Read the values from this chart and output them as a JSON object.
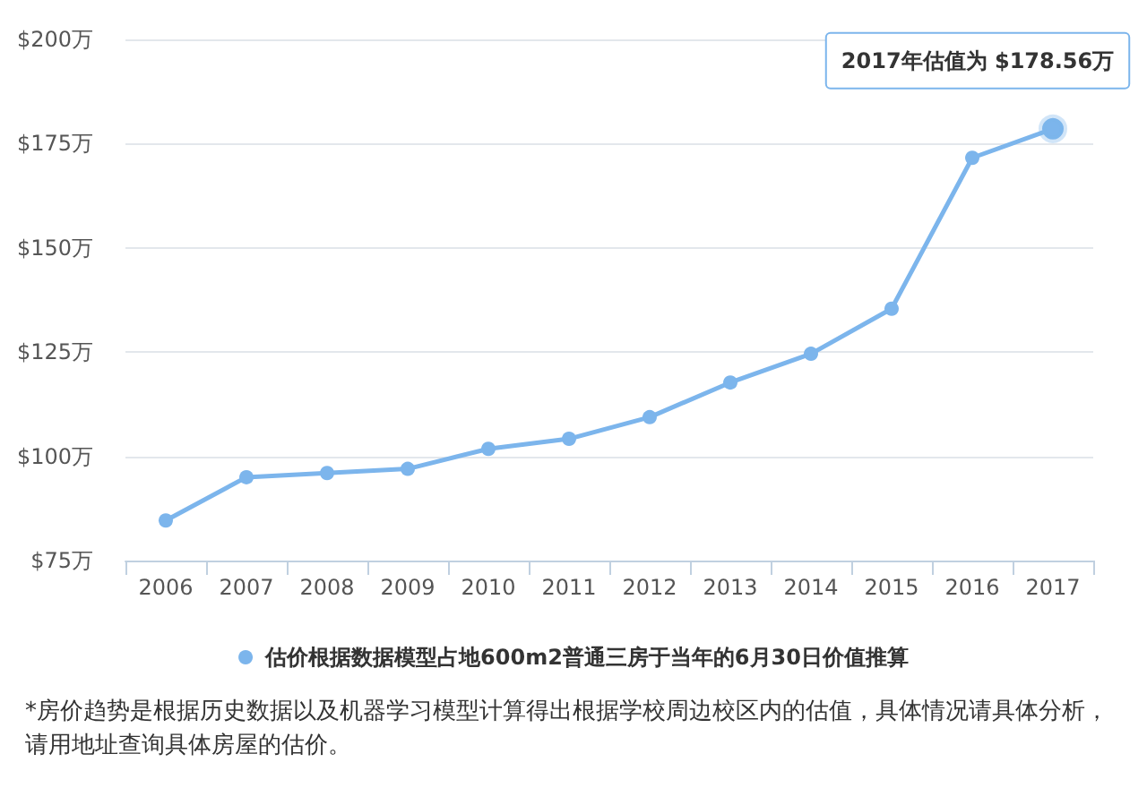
{
  "chart_data": {
    "type": "line",
    "categories": [
      "2006",
      "2007",
      "2008",
      "2009",
      "2010",
      "2011",
      "2012",
      "2013",
      "2014",
      "2015",
      "2016",
      "2017"
    ],
    "series": [
      {
        "name": "估价根据数据模型占地600m2普通三房于当年的6月30日价值推算",
        "color": "#7cb5ec",
        "values": [
          84.6,
          95,
          96,
          97,
          101.8,
          104.2,
          109.4,
          117.7,
          124.6,
          135.4,
          171.6,
          178.56
        ]
      }
    ],
    "ylim": [
      75,
      200
    ],
    "yticks": [
      {
        "value": 75,
        "label": "$75万"
      },
      {
        "value": 100,
        "label": "$100万"
      },
      {
        "value": 125,
        "label": "$125万"
      },
      {
        "value": 150,
        "label": "$150万"
      },
      {
        "value": 175,
        "label": "$175万"
      },
      {
        "value": 200,
        "label": "$200万"
      }
    ],
    "grid": "y",
    "legend": "bottom",
    "marker": "circle",
    "line_style": "solid",
    "annotations": [
      {
        "text": "2017年估值为 $178.56万",
        "x": "2017",
        "y": 178.56
      },
      "*房价趋势是根据历史数据以及机器学习模型计算得出根据学校周边校区内的估值，具体情况请具体分析，请用地址查询具体房屋的估价。"
    ]
  }
}
